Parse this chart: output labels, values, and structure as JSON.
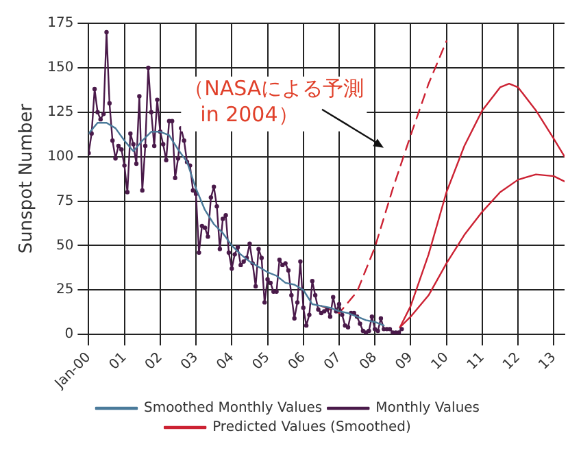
{
  "chart_data": {
    "type": "line",
    "ylabel": "Sunspot Number",
    "xlim": [
      2000,
      2013.3
    ],
    "xticks": [
      {
        "value": 2000,
        "label": "Jan-00"
      },
      {
        "value": 2001,
        "label": "01"
      },
      {
        "value": 2002,
        "label": "02"
      },
      {
        "value": 2003,
        "label": "03"
      },
      {
        "value": 2004,
        "label": "04"
      },
      {
        "value": 2005,
        "label": "05"
      },
      {
        "value": 2006,
        "label": "06"
      },
      {
        "value": 2007,
        "label": "07"
      },
      {
        "value": 2008,
        "label": "08"
      },
      {
        "value": 2009,
        "label": "09"
      },
      {
        "value": 2010,
        "label": "10"
      },
      {
        "value": 2011,
        "label": "11"
      },
      {
        "value": 2012,
        "label": "12"
      },
      {
        "value": 2013,
        "label": "13"
      }
    ],
    "ylim": [
      0,
      175
    ],
    "yticks": [
      0,
      25,
      50,
      75,
      100,
      125,
      150,
      175
    ],
    "grid": true,
    "legend": "bottom",
    "annotations": [
      "（NASAによる予測\nin 2004）"
    ],
    "series": [
      {
        "name": "Smoothed Monthly Values",
        "color": "#4a7a9a",
        "marker": "none",
        "x": [
          2000,
          2000.25,
          2000.5,
          2000.75,
          2001,
          2001.25,
          2001.5,
          2001.75,
          2002,
          2002.25,
          2002.5,
          2002.75,
          2003,
          2003.25,
          2003.5,
          2003.75,
          2004,
          2004.25,
          2004.5,
          2004.75,
          2005,
          2005.25,
          2005.5,
          2005.75,
          2006,
          2006.25,
          2006.5,
          2006.75,
          2007,
          2007.25,
          2007.5,
          2007.75,
          2008,
          2008.25
        ],
        "values": [
          113,
          119,
          119,
          116,
          109,
          103,
          109,
          114,
          114,
          112,
          104,
          97,
          82,
          70,
          62,
          57,
          50,
          45,
          41,
          38,
          35,
          33,
          29,
          28,
          25,
          17,
          16,
          15,
          13,
          12,
          10,
          8,
          7,
          5
        ]
      },
      {
        "name": "Monthly Values",
        "color": "#4a1a4a",
        "marker": "circle",
        "x": [
          2000,
          2000.083,
          2000.167,
          2000.25,
          2000.333,
          2000.417,
          2000.5,
          2000.583,
          2000.667,
          2000.75,
          2000.833,
          2000.917,
          2001,
          2001.083,
          2001.167,
          2001.25,
          2001.333,
          2001.417,
          2001.5,
          2001.583,
          2001.667,
          2001.75,
          2001.833,
          2001.917,
          2002,
          2002.083,
          2002.167,
          2002.25,
          2002.333,
          2002.417,
          2002.5,
          2002.583,
          2002.667,
          2002.75,
          2002.833,
          2002.917,
          2003,
          2003.083,
          2003.167,
          2003.25,
          2003.333,
          2003.417,
          2003.5,
          2003.583,
          2003.667,
          2003.75,
          2003.833,
          2003.917,
          2004,
          2004.083,
          2004.167,
          2004.25,
          2004.333,
          2004.417,
          2004.5,
          2004.583,
          2004.667,
          2004.75,
          2004.833,
          2004.917,
          2005,
          2005.083,
          2005.167,
          2005.25,
          2005.333,
          2005.417,
          2005.5,
          2005.583,
          2005.667,
          2005.75,
          2005.833,
          2005.917,
          2006,
          2006.083,
          2006.167,
          2006.25,
          2006.333,
          2006.417,
          2006.5,
          2006.583,
          2006.667,
          2006.75,
          2006.833,
          2006.917,
          2007,
          2007.083,
          2007.167,
          2007.25,
          2007.333,
          2007.417,
          2007.5,
          2007.583,
          2007.667,
          2007.75,
          2007.833,
          2007.917,
          2008,
          2008.083,
          2008.167,
          2008.25,
          2008.333,
          2008.417,
          2008.5,
          2008.583,
          2008.667,
          2008.75
        ],
        "values": [
          102,
          113,
          138,
          125,
          121,
          124,
          170,
          130,
          109,
          99,
          106,
          104,
          95,
          80,
          113,
          107,
          96,
          134,
          81,
          106,
          150,
          125,
          106,
          132,
          114,
          107,
          98,
          120,
          120,
          88,
          99,
          116,
          109,
          97,
          95,
          81,
          79,
          46,
          61,
          60,
          55,
          77,
          83,
          72,
          48,
          65,
          67,
          46,
          37,
          45,
          49,
          39,
          41,
          43,
          51,
          40,
          27,
          48,
          43,
          18,
          31,
          29,
          24,
          24,
          42,
          39,
          40,
          36,
          22,
          9,
          18,
          41,
          15,
          5,
          11,
          30,
          22,
          14,
          12,
          13,
          14,
          10,
          21,
          13,
          17,
          11,
          5,
          4,
          12,
          12,
          10,
          6,
          2,
          1,
          2,
          10,
          3,
          2,
          9,
          3,
          3,
          3,
          1,
          1,
          1,
          3
        ]
      },
      {
        "name": "Predicted Values (Smoothed)",
        "color": "#cc2233",
        "marker": "none",
        "x": [
          2008.7,
          2009,
          2009.5,
          2010,
          2010.5,
          2011,
          2011.5,
          2011.75,
          2012,
          2012.5,
          2013,
          2013.3
        ],
        "values": [
          4,
          16,
          45,
          80,
          106,
          126,
          139,
          141,
          139,
          126,
          110,
          100
        ]
      },
      {
        "color": "#cc2233",
        "marker": "none",
        "x": [
          2008.7,
          2009,
          2009.5,
          2010,
          2010.5,
          2011,
          2011.5,
          2012,
          2012.5,
          2013,
          2013.3
        ],
        "values": [
          4,
          10,
          22,
          40,
          56,
          69,
          80,
          87,
          90,
          89,
          86
        ]
      },
      {
        "color": "#cc2233",
        "marker": "none",
        "line_style": "dashed",
        "x": [
          2006.5,
          2007,
          2007.5,
          2008,
          2008.5,
          2009,
          2009.5,
          2010
        ],
        "values": [
          16,
          12,
          24,
          49,
          82,
          112,
          141,
          165
        ]
      }
    ]
  }
}
